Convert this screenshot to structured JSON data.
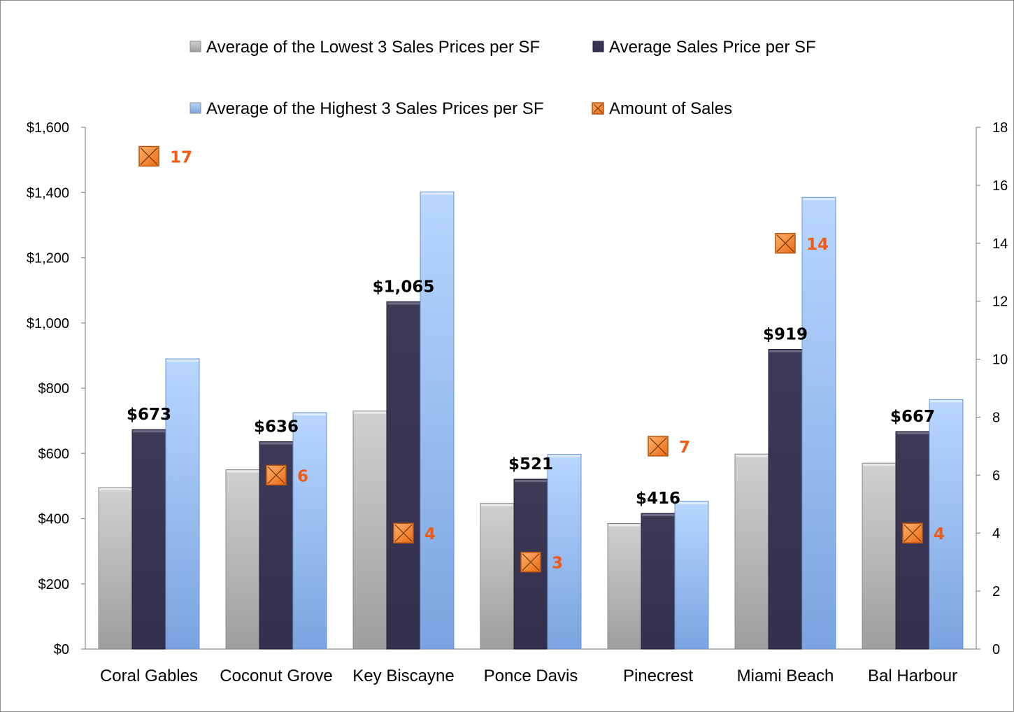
{
  "chart_data": {
    "type": "bar",
    "categories": [
      "Coral Gables",
      "Coconut Grove",
      "Key Biscayne",
      "Ponce Davis",
      "Pinecrest",
      "Miami Beach",
      "Bal Harbour"
    ],
    "series": [
      {
        "name": "Average of the Lowest 3 Sales Prices per SF",
        "axis": "left",
        "type": "bar",
        "color": "#a6a6a6",
        "values": [
          495,
          550,
          730,
          447,
          385,
          598,
          570
        ]
      },
      {
        "name": "Average Sales Price per SF",
        "axis": "left",
        "type": "bar",
        "color": "#3b3856",
        "values": [
          673,
          636,
          1065,
          521,
          416,
          919,
          667
        ],
        "data_labels": [
          "$673",
          "$636",
          "$1,065",
          "$521",
          "$416",
          "$919",
          "$667"
        ]
      },
      {
        "name": "Average of the Highest 3 Sales Prices per SF",
        "axis": "left",
        "type": "bar",
        "color": "#8fb4ec",
        "values": [
          890,
          725,
          1402,
          597,
          453,
          1385,
          765
        ]
      },
      {
        "name": "Amount of Sales",
        "axis": "right",
        "type": "scatter",
        "color": "#f07d2a",
        "values": [
          17,
          6,
          4,
          3,
          7,
          14,
          4
        ],
        "data_labels": [
          "17",
          "6",
          "4",
          "3",
          "7",
          "14",
          "4"
        ]
      }
    ],
    "left_axis": {
      "ylim": [
        0,
        1600
      ],
      "ticks": [
        "$0",
        "$200",
        "$400",
        "$600",
        "$800",
        "$1,000",
        "$1,200",
        "$1,400",
        "$1,600"
      ]
    },
    "right_axis": {
      "ylim": [
        0,
        18
      ],
      "ticks": [
        "0",
        "2",
        "4",
        "6",
        "8",
        "10",
        "12",
        "14",
        "16",
        "18"
      ]
    },
    "legend": {
      "position": "top",
      "entries": [
        "Average of the Lowest 3 Sales Prices per SF",
        "Average Sales Price per SF",
        "Average of the Highest 3 Sales Prices per SF",
        "Amount of Sales"
      ]
    },
    "grid": false,
    "title": "",
    "xlabel": "",
    "ylabel": ""
  }
}
